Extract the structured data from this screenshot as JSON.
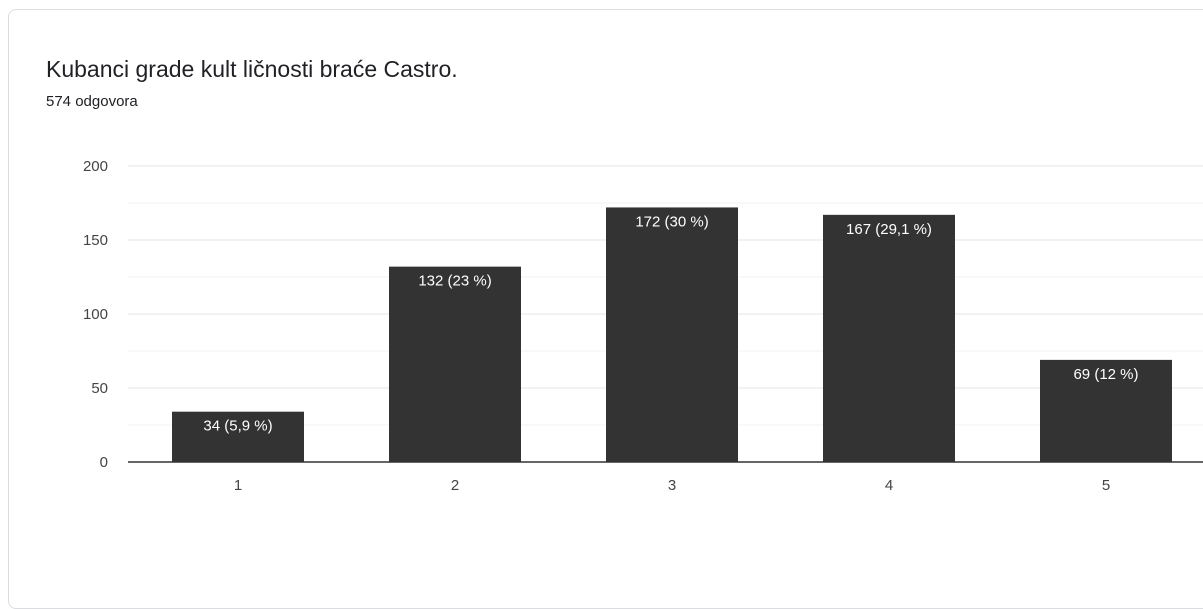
{
  "title": "Kubanci grade kult ličnosti braće Castro.",
  "subtitle": "574 odgovora",
  "chart_data": {
    "type": "bar",
    "title": "Kubanci grade kult ličnosti braće Castro.",
    "categories": [
      "1",
      "2",
      "3",
      "4",
      "5"
    ],
    "values": [
      34,
      132,
      172,
      167,
      69
    ],
    "data_labels": [
      "34 (5,9 %)",
      "132 (23 %)",
      "172 (30 %)",
      "167 (29,1 %)",
      "69 (12 %)"
    ],
    "yticks": [
      0,
      50,
      100,
      150,
      200
    ],
    "ylim": [
      0,
      200
    ],
    "grid": true,
    "bar_color": "#333333",
    "label_color": "#ffffff"
  }
}
